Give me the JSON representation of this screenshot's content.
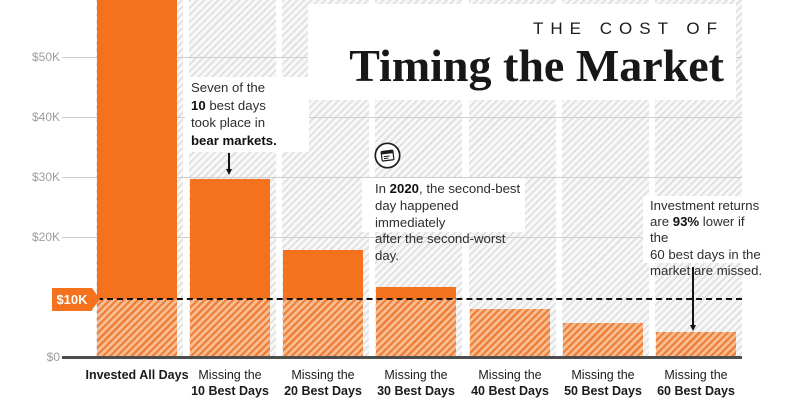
{
  "title": {
    "kicker": "THE COST OF",
    "main": "Timing the Market"
  },
  "chart_data": {
    "type": "bar",
    "categories": [
      {
        "line1": "Invested All Days",
        "line1_bold": true
      },
      {
        "line1": "Missing the",
        "line2": "10 Best Days"
      },
      {
        "line1": "Missing the",
        "line2": "20 Best Days"
      },
      {
        "line1": "Missing the",
        "line2": "30 Best Days"
      },
      {
        "line1": "Missing the",
        "line2": "40 Best Days"
      },
      {
        "line1": "Missing the",
        "line2": "50 Best Days"
      },
      {
        "line1": "Missing the",
        "line2": "60 Best Days"
      }
    ],
    "values": [
      65000,
      29700,
      17800,
      11700,
      8000,
      5700,
      4200
    ],
    "first_bar_clipped_at_top": true,
    "ytick_labels": [
      "$50K",
      "$40K",
      "$30K",
      "$20K",
      "$10K",
      "$0"
    ],
    "ytick_values": [
      50000,
      40000,
      30000,
      20000,
      10000,
      0
    ],
    "ylim": [
      0,
      59500
    ],
    "grid": true,
    "reference_line": {
      "value": 10000,
      "label": "$10K",
      "style": "dashed"
    },
    "colors": {
      "bar_solid": "#f4711d",
      "bar_hatch_dark": "#ef7e38",
      "bar_hatch_light": "#f9bd92",
      "background_hatch": "#e0e0e0",
      "badge_text": "#ffffff"
    }
  },
  "annotations": {
    "bear_markets": {
      "text": "Seven of the\n**10** best days\ntook place in\n**bear markets.**"
    },
    "calendar_note": {
      "icon": "calendar-icon",
      "text": "In **2020**, the second-best\nday happened immediately\nafter the second-worst day."
    },
    "returns_note": {
      "text": "Investment returns\nare **93%** lower if the\n60 best days in the\nmarket are missed."
    }
  }
}
